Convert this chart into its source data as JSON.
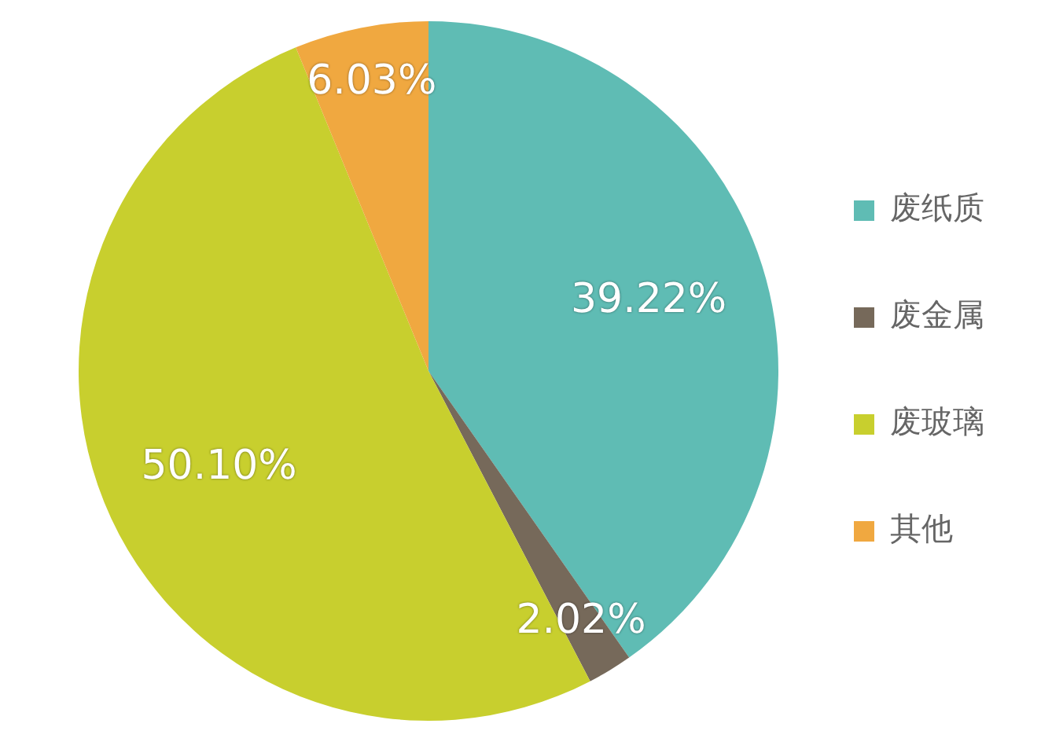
{
  "chart_data": {
    "type": "pie",
    "categories": [
      "废纸质",
      "废金属",
      "废玻璃",
      "其他"
    ],
    "values": [
      39.22,
      2.02,
      50.1,
      6.03
    ],
    "colors": [
      "#5fbcb4",
      "#76695a",
      "#c8cf2e",
      "#f0a840"
    ],
    "value_labels": [
      "39.22%",
      "2.02%",
      "50.10%",
      "6.03%"
    ],
    "legend": "right"
  }
}
